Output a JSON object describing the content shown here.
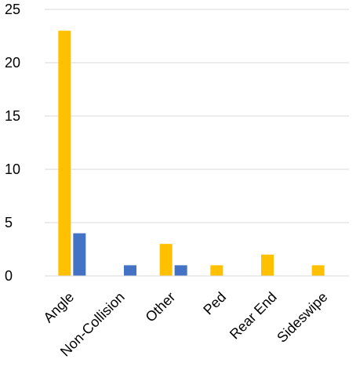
{
  "chart_data": {
    "type": "bar",
    "categories": [
      "Angle",
      "Non-Collision",
      "Other",
      "Ped",
      "Rear End",
      "Sideswipe"
    ],
    "series": [
      {
        "values": [
          23,
          0,
          3,
          1,
          2,
          1
        ],
        "color": "#FFC000"
      },
      {
        "values": [
          4,
          1,
          1,
          0,
          0,
          0
        ],
        "color": "#4472C4"
      }
    ],
    "yticks": [
      "0",
      "5",
      "10",
      "15",
      "20",
      "25"
    ],
    "ylim": [
      0,
      25
    ],
    "grid": true,
    "legend": "none",
    "title": "",
    "xlabel": "",
    "ylabel": ""
  }
}
